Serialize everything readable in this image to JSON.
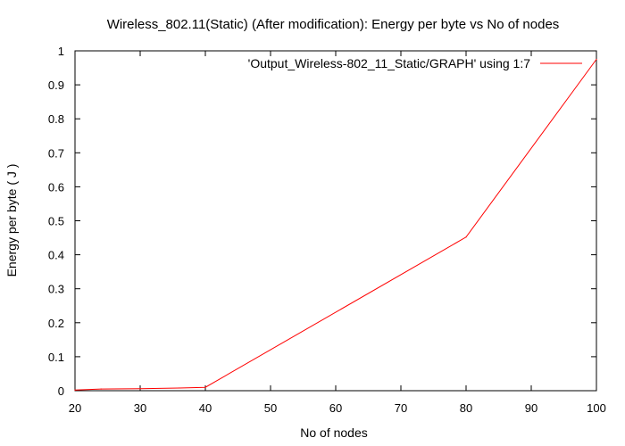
{
  "chart_data": {
    "type": "line",
    "title": "Wireless_802.11(Static) (After modification): Energy per byte vs No of nodes",
    "xlabel": "No of nodes",
    "ylabel": "Energy per byte ( J )",
    "xlim": [
      20,
      100
    ],
    "ylim": [
      0,
      1
    ],
    "x_ticks": [
      20,
      30,
      40,
      50,
      60,
      70,
      80,
      90,
      100
    ],
    "y_ticks": [
      0,
      0.1,
      0.2,
      0.3,
      0.4,
      0.5,
      0.6,
      0.7,
      0.8,
      0.9,
      1
    ],
    "grid": false,
    "legend_position": "top-right",
    "series": [
      {
        "name": "'Output_Wireless-802_11_Static/GRAPH' using 1:7",
        "color": "#ff0000",
        "x": [
          20,
          24,
          30,
          36,
          40,
          80,
          100
        ],
        "y": [
          0.002,
          0.005,
          0.006,
          0.008,
          0.01,
          0.452,
          0.975
        ]
      }
    ]
  }
}
